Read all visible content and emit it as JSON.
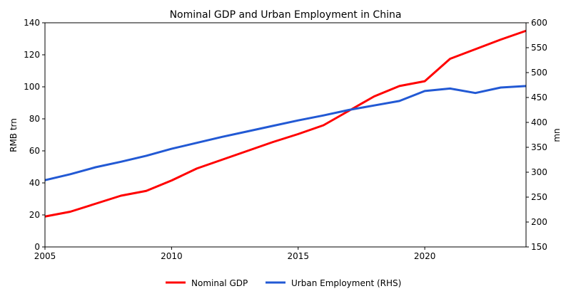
{
  "chart_data": {
    "type": "line",
    "title": "Nominal GDP and Urban Employment in China",
    "xlabel": "",
    "ylabel": "RMB trn",
    "ylabel_right": "mn",
    "xlim": [
      2005,
      2024
    ],
    "ylim": [
      0,
      140
    ],
    "ylim_right": [
      150,
      600
    ],
    "x_ticks": [
      2005,
      2010,
      2015,
      2020
    ],
    "y_ticks": [
      0,
      20,
      40,
      60,
      80,
      100,
      120,
      140
    ],
    "y_ticks_right": [
      150,
      200,
      250,
      300,
      350,
      400,
      450,
      500,
      550,
      600
    ],
    "grid": false,
    "legend_position": "bottom",
    "x": [
      2005,
      2006,
      2007,
      2008,
      2009,
      2010,
      2011,
      2012,
      2013,
      2014,
      2015,
      2016,
      2017,
      2018,
      2019,
      2020,
      2021,
      2022,
      2023,
      2024
    ],
    "series": [
      {
        "name": "Nominal GDP",
        "axis": "left",
        "color": "#ff0000",
        "values": [
          19.0,
          22.0,
          27.0,
          32.0,
          35.0,
          41.5,
          49.0,
          54.5,
          60.0,
          65.5,
          70.5,
          76.0,
          85.0,
          94.0,
          100.5,
          103.5,
          117.5,
          123.5,
          129.5,
          135.0
        ]
      },
      {
        "name": "Urban Employment (RHS)",
        "axis": "right",
        "color": "#2259d4",
        "values": [
          284,
          296,
          310,
          321,
          333,
          347,
          359,
          371,
          382,
          393,
          404,
          414,
          425,
          434,
          443,
          463,
          468,
          459,
          470,
          473
        ]
      }
    ]
  }
}
